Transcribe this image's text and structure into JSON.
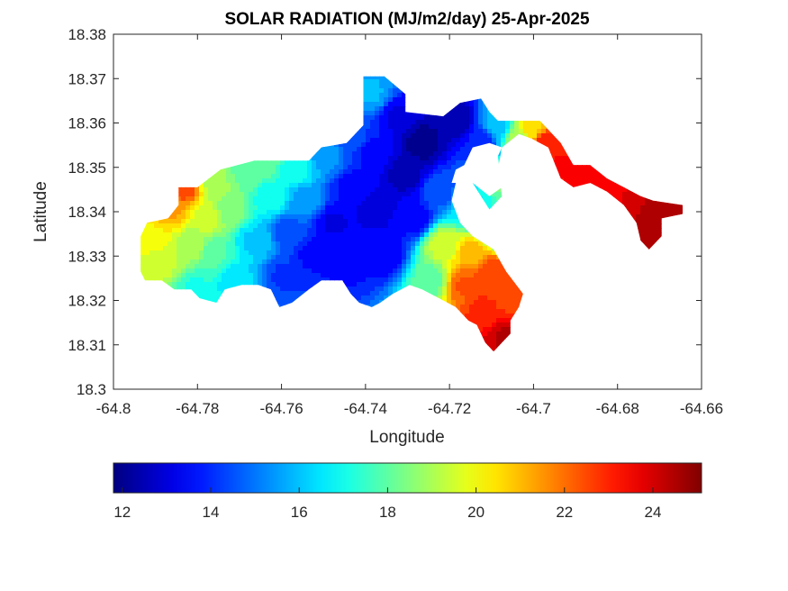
{
  "chart_data": {
    "type": "heatmap",
    "title": "SOLAR RADIATION (MJ/m2/day) 25-Apr-2025",
    "xlabel": "Longitude",
    "ylabel": "Latitude",
    "xlim": [
      -64.8,
      -64.66
    ],
    "ylim": [
      18.3,
      18.38
    ],
    "xticks": [
      -64.8,
      -64.78,
      -64.76,
      -64.74,
      -64.72,
      -64.7,
      -64.68,
      -64.66
    ],
    "xtick_labels": [
      "-64.8",
      "-64.78",
      "-64.76",
      "-64.74",
      "-64.72",
      "-64.7",
      "-64.68",
      "-64.66"
    ],
    "yticks": [
      18.3,
      18.31,
      18.32,
      18.33,
      18.34,
      18.35,
      18.36,
      18.37,
      18.38
    ],
    "ytick_labels": [
      "18.3",
      "18.31",
      "18.32",
      "18.33",
      "18.34",
      "18.35",
      "18.36",
      "18.37",
      "18.38"
    ],
    "colorbar": {
      "orientation": "horizontal",
      "colormap": "jet",
      "clim": [
        11.8,
        25.1
      ],
      "ticks": [
        12,
        14,
        16,
        18,
        20,
        22,
        24
      ],
      "tick_labels": [
        "12",
        "14",
        "16",
        "18",
        "20",
        "22",
        "24"
      ]
    },
    "grid": false,
    "island_outline": [
      [
        -64.792,
        18.3375
      ],
      [
        -64.787,
        18.3385
      ],
      [
        -64.7845,
        18.3415
      ],
      [
        -64.7845,
        18.3455
      ],
      [
        -64.78,
        18.3455
      ],
      [
        -64.7745,
        18.3495
      ],
      [
        -64.7665,
        18.3515
      ],
      [
        -64.7535,
        18.3515
      ],
      [
        -64.7505,
        18.3545
      ],
      [
        -64.7445,
        18.3555
      ],
      [
        -64.7405,
        18.3595
      ],
      [
        -64.7405,
        18.3705
      ],
      [
        -64.7355,
        18.3705
      ],
      [
        -64.7305,
        18.3665
      ],
      [
        -64.7305,
        18.3625
      ],
      [
        -64.7215,
        18.3615
      ],
      [
        -64.7175,
        18.3645
      ],
      [
        -64.7125,
        18.3655
      ],
      [
        -64.7105,
        18.3625
      ],
      [
        -64.7085,
        18.3605
      ],
      [
        -64.7035,
        18.3605
      ],
      [
        -64.6985,
        18.3605
      ],
      [
        -64.6965,
        18.3585
      ],
      [
        -64.6935,
        18.3555
      ],
      [
        -64.6905,
        18.3505
      ],
      [
        -64.6865,
        18.3505
      ],
      [
        -64.6825,
        18.3475
      ],
      [
        -64.6785,
        18.3455
      ],
      [
        -64.6745,
        18.3435
      ],
      [
        -64.6715,
        18.3425
      ],
      [
        -64.6645,
        18.3415
      ],
      [
        -64.6645,
        18.3395
      ],
      [
        -64.6695,
        18.3385
      ],
      [
        -64.6695,
        18.3345
      ],
      [
        -64.6725,
        18.3315
      ],
      [
        -64.6745,
        18.3335
      ],
      [
        -64.6755,
        18.3375
      ],
      [
        -64.6785,
        18.3415
      ],
      [
        -64.6825,
        18.3445
      ],
      [
        -64.6865,
        18.3465
      ],
      [
        -64.6905,
        18.3455
      ],
      [
        -64.6935,
        18.3475
      ],
      [
        -64.6965,
        18.3545
      ],
      [
        -64.7005,
        18.3565
      ],
      [
        -64.7035,
        18.3575
      ],
      [
        -64.7075,
        18.3545
      ],
      [
        -64.7085,
        18.3495
      ],
      [
        -64.7075,
        18.3435
      ],
      [
        -64.7105,
        18.3405
      ],
      [
        -64.7125,
        18.3435
      ],
      [
        -64.7145,
        18.3465
      ],
      [
        -64.7185,
        18.3465
      ],
      [
        -64.7195,
        18.3425
      ],
      [
        -64.7175,
        18.3375
      ],
      [
        -64.7145,
        18.3345
      ],
      [
        -64.7095,
        18.3315
      ],
      [
        -64.7065,
        18.3265
      ],
      [
        -64.7025,
        18.3215
      ],
      [
        -64.7035,
        18.3185
      ],
      [
        -64.7055,
        18.3155
      ],
      [
        -64.7055,
        18.3125
      ],
      [
        -64.7075,
        18.3105
      ],
      [
        -64.7095,
        18.3085
      ],
      [
        -64.7115,
        18.3105
      ],
      [
        -64.7135,
        18.3145
      ],
      [
        -64.7155,
        18.3155
      ],
      [
        -64.7185,
        18.3185
      ],
      [
        -64.7225,
        18.3205
      ],
      [
        -64.7265,
        18.3225
      ],
      [
        -64.7295,
        18.3235
      ],
      [
        -64.7335,
        18.3215
      ],
      [
        -64.7365,
        18.3195
      ],
      [
        -64.7385,
        18.3185
      ],
      [
        -64.7415,
        18.3195
      ],
      [
        -64.7435,
        18.3215
      ],
      [
        -64.7455,
        18.3245
      ],
      [
        -64.7505,
        18.3245
      ],
      [
        -64.7535,
        18.3225
      ],
      [
        -64.7575,
        18.3195
      ],
      [
        -64.7605,
        18.3185
      ],
      [
        -64.7625,
        18.3225
      ],
      [
        -64.7655,
        18.3235
      ],
      [
        -64.7695,
        18.3235
      ],
      [
        -64.7735,
        18.3225
      ],
      [
        -64.7755,
        18.3195
      ],
      [
        -64.7795,
        18.3205
      ],
      [
        -64.7815,
        18.3225
      ],
      [
        -64.7855,
        18.3225
      ],
      [
        -64.7885,
        18.3245
      ],
      [
        -64.7925,
        18.3245
      ],
      [
        -64.7935,
        18.3265
      ],
      [
        -64.7935,
        18.3345
      ]
    ],
    "ne_island_outline": [
      [
        -64.6665,
        18.3415
      ],
      [
        -64.6645,
        18.3405
      ],
      [
        -64.6645,
        18.3395
      ],
      [
        -64.6665,
        18.3395
      ]
    ],
    "gap_outline": [
      [
        -64.7195,
        18.3465
      ],
      [
        -64.7145,
        18.3465
      ],
      [
        -64.7105,
        18.3435
      ],
      [
        -64.7075,
        18.3455
      ],
      [
        -64.7085,
        18.3525
      ],
      [
        -64.7075,
        18.3545
      ],
      [
        -64.7105,
        18.3555
      ],
      [
        -64.7145,
        18.3545
      ],
      [
        -64.7165,
        18.3505
      ],
      [
        -64.7185,
        18.3495
      ]
    ],
    "field_points": [
      [
        -64.7905,
        18.3345,
        20.2
      ],
      [
        -64.7885,
        18.3285,
        19.4
      ],
      [
        -64.7865,
        18.3405,
        21.3
      ],
      [
        -64.7835,
        18.3455,
        22.6
      ],
      [
        -64.7815,
        18.3325,
        19.0
      ],
      [
        -64.7805,
        18.3225,
        17.2
      ],
      [
        -64.7775,
        18.3385,
        19.5
      ],
      [
        -64.7755,
        18.3465,
        19.0
      ],
      [
        -64.7755,
        18.3305,
        17.8
      ],
      [
        -64.7725,
        18.3405,
        18.5
      ],
      [
        -64.7705,
        18.3245,
        16.3
      ],
      [
        -64.7695,
        18.3485,
        18.2
      ],
      [
        -64.7665,
        18.3335,
        16.2
      ],
      [
        -64.7645,
        18.3505,
        18.2
      ],
      [
        -64.7625,
        18.3435,
        17.0
      ],
      [
        -64.7595,
        18.3255,
        14.2
      ],
      [
        -64.7585,
        18.3355,
        14.6
      ],
      [
        -64.7565,
        18.3495,
        17.0
      ],
      [
        -64.7545,
        18.3425,
        15.5
      ],
      [
        -64.7525,
        18.3305,
        13.6
      ],
      [
        -64.7495,
        18.3525,
        15.5
      ],
      [
        -64.7475,
        18.3375,
        13.2
      ],
      [
        -64.7445,
        18.3285,
        13.6
      ],
      [
        -64.7435,
        18.3455,
        13.6
      ],
      [
        -64.7425,
        18.3565,
        14.4
      ],
      [
        -64.7385,
        18.3665,
        15.8
      ],
      [
        -64.7385,
        18.3535,
        13.6
      ],
      [
        -64.7375,
        18.3405,
        13.0
      ],
      [
        -64.7355,
        18.3305,
        13.3
      ],
      [
        -64.7325,
        18.3615,
        13.2
      ],
      [
        -64.7305,
        18.3485,
        12.5
      ],
      [
        -64.7285,
        18.3385,
        13.4
      ],
      [
        -64.7265,
        18.3555,
        12.0
      ],
      [
        -64.7245,
        18.3245,
        18.0
      ],
      [
        -64.7225,
        18.3445,
        14.5
      ],
      [
        -64.7215,
        18.3325,
        19.5
      ],
      [
        -64.7185,
        18.3605,
        12.3
      ],
      [
        -64.7165,
        18.3235,
        22.3
      ],
      [
        -64.7155,
        18.3405,
        16.6
      ],
      [
        -64.7145,
        18.3305,
        21.0
      ],
      [
        -64.7125,
        18.3555,
        13.8
      ],
      [
        -64.7115,
        18.3175,
        23.0
      ],
      [
        -64.7105,
        18.3265,
        22.6
      ],
      [
        -64.7085,
        18.3355,
        17.2
      ],
      [
        -64.7085,
        18.3595,
        16.0
      ],
      [
        -64.7065,
        18.3215,
        22.4
      ],
      [
        -64.7065,
        18.3115,
        24.3
      ],
      [
        -64.7055,
        18.3475,
        18.5
      ],
      [
        -64.7035,
        18.3565,
        19.0
      ],
      [
        -64.7005,
        18.3585,
        20.5
      ],
      [
        -64.6975,
        18.3555,
        23.0
      ],
      [
        -64.6935,
        18.3505,
        23.3
      ],
      [
        -64.6875,
        18.3475,
        23.5
      ],
      [
        -64.6815,
        18.3445,
        23.6
      ],
      [
        -64.6765,
        18.3425,
        23.8
      ],
      [
        -64.6725,
        18.3405,
        24.4
      ],
      [
        -64.6715,
        18.3355,
        24.6
      ],
      [
        -64.6665,
        18.3405,
        24.3
      ]
    ]
  }
}
